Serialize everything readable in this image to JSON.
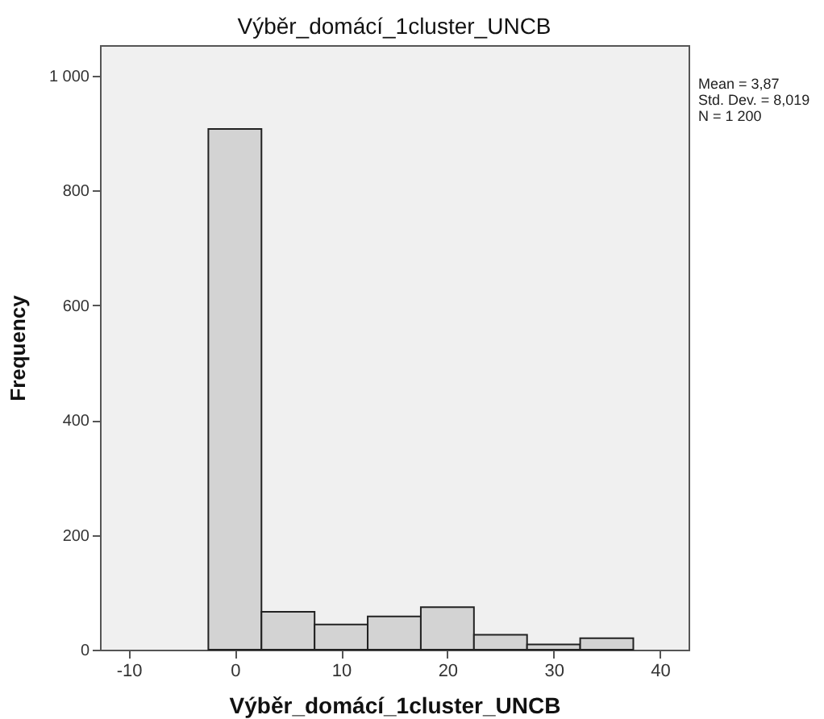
{
  "chart_data": {
    "type": "histogram",
    "title": "Výběr_domácí_1cluster_UNCB",
    "xlabel": "Výběr_domácí_1cluster_UNCB",
    "ylabel": "Frequency",
    "bins": [
      -2.5,
      2.5,
      7.5,
      12.5,
      17.5,
      22.5,
      27.5,
      32.5,
      37.5
    ],
    "values": [
      907,
      66,
      44,
      58,
      74,
      26,
      9,
      20
    ],
    "color": "#d3d3d3",
    "xlim": [
      -12.7,
      42.7
    ],
    "xticks": [
      -10,
      0,
      10,
      20,
      30,
      40
    ],
    "ylim": [
      0,
      1053
    ],
    "yticks": [
      0,
      200,
      400,
      600,
      800,
      {
        "value": 1000,
        "label": "1 000"
      }
    ],
    "grid": false,
    "annotations": [
      "Mean = 3,87",
      "Std. Dev. = 8,019",
      "N = 1 200"
    ]
  }
}
